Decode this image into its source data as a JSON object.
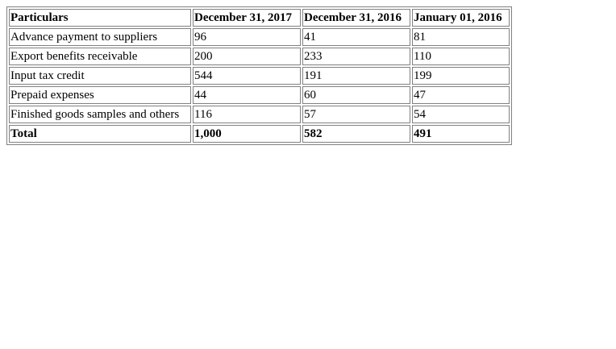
{
  "table": {
    "headers": [
      "Particulars",
      "December 31, 2017",
      "December 31, 2016",
      "January 01, 2016"
    ],
    "rows": [
      [
        "Advance payment to suppliers",
        "96",
        "41",
        "81"
      ],
      [
        "Export benefits receivable",
        "200",
        "233",
        "110"
      ],
      [
        "Input tax credit",
        "544",
        "191",
        "199"
      ],
      [
        "Prepaid expenses",
        "44",
        "60",
        "47"
      ],
      [
        "Finished goods samples and others",
        "116",
        "57",
        "54"
      ]
    ],
    "total": [
      "Total",
      "1,000",
      "582",
      "491"
    ]
  }
}
